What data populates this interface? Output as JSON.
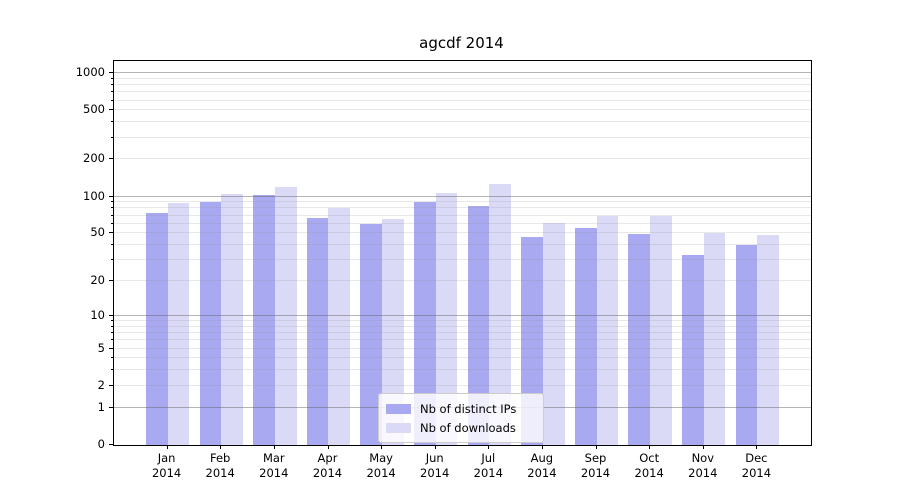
{
  "figure": {
    "title": "agcdf 2014",
    "background_color": "#ffffff"
  },
  "chart_data": {
    "type": "bar",
    "title": "agcdf 2014",
    "categories": [
      "Jan",
      "Feb",
      "Mar",
      "Apr",
      "May",
      "Jun",
      "Jul",
      "Aug",
      "Sep",
      "Oct",
      "Nov",
      "Dec"
    ],
    "category_year": "2014",
    "series": [
      {
        "name": "Nb of distinct IPs",
        "color": "#a9a9f2",
        "values": [
          73,
          91,
          103,
          67,
          60,
          90,
          83,
          47,
          55,
          49,
          33,
          40
        ]
      },
      {
        "name": "Nb of downloads",
        "color": "#dadaf7",
        "values": [
          88,
          105,
          120,
          81,
          66,
          107,
          127,
          61,
          70,
          70,
          50,
          48
        ]
      }
    ],
    "xlabel": "",
    "ylabel": "",
    "yscale": "log1p",
    "ylim": [
      0,
      1250
    ],
    "yticks": [
      0,
      1,
      2,
      5,
      10,
      20,
      50,
      100,
      200,
      500,
      1000
    ],
    "grid": {
      "on": true,
      "major_values": [
        1,
        10,
        100,
        1000
      ],
      "minor_values": [
        2,
        3,
        4,
        5,
        6,
        7,
        8,
        9,
        20,
        30,
        40,
        50,
        60,
        70,
        80,
        90,
        200,
        300,
        400,
        500,
        600,
        700,
        800,
        900
      ]
    },
    "legend": {
      "position": "lower-center-inside",
      "entries": [
        "Nb of distinct IPs",
        "Nb of downloads"
      ]
    }
  }
}
